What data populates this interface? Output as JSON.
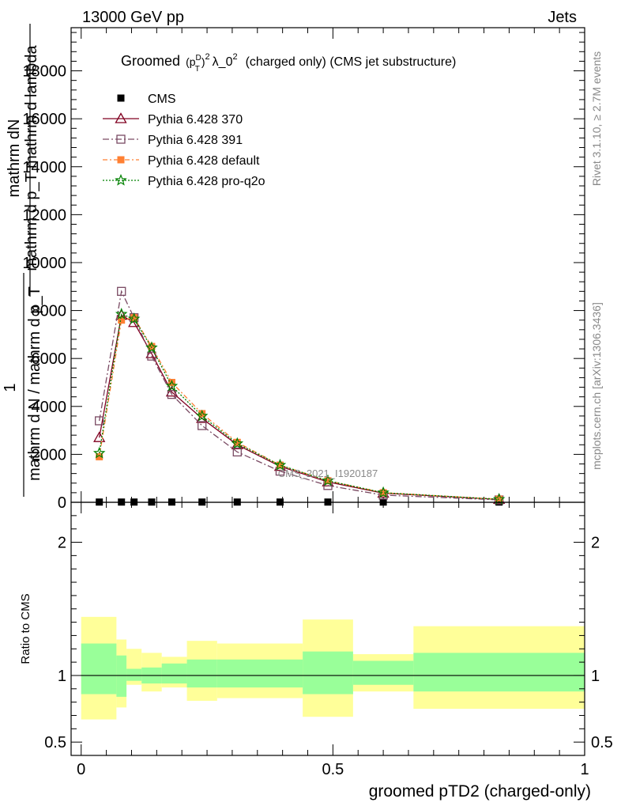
{
  "header": {
    "left": "13000 GeV pp",
    "right": "Jets"
  },
  "title": {
    "prefix": "Groomed",
    "p": "p",
    "sup_d": "D",
    "sub_t": "T",
    "sq": "2",
    "lambda": "λ_0",
    "sq2": "2",
    "suffix": "(charged only) (CMS jet substructure)"
  },
  "watermark": "CMS_2021_I1920187",
  "side_labels": {
    "rivet": "Rivet 3.1.10, ≥ 2.7M events",
    "mcplots": "mcplots.cern.ch [arXiv:1306.3436]"
  },
  "ylabel_main": {
    "numerator": "mathrm dN",
    "numerator2": "mathrm d p_T mathrm d lambda",
    "one": "1",
    "denominator": "mathrm d N / mathrm d p_T"
  },
  "ylabel_ratio": "Ratio to CMS",
  "xlabel": "groomed pTD2 (charged-only)",
  "colors": {
    "cms": "#000000",
    "p370": "#800020",
    "p391": "#7a4a63",
    "pdefault": "#ff8033",
    "pq2o": "#008000",
    "band_inner": "#99ff99",
    "band_outer": "#ffff99"
  },
  "legend": [
    {
      "key": "cms",
      "label": "CMS",
      "marker": "square-filled"
    },
    {
      "key": "p370",
      "label": "Pythia 6.428 370",
      "marker": "triangle-open"
    },
    {
      "key": "p391",
      "label": "Pythia 6.428 391",
      "marker": "square-open"
    },
    {
      "key": "pdefault",
      "label": "Pythia 6.428 default",
      "marker": "square-filled"
    },
    {
      "key": "pq2o",
      "label": "Pythia 6.428 pro-q2o",
      "marker": "star"
    }
  ],
  "chart_data": {
    "type": "line",
    "xlim": [
      -0.02,
      1.0
    ],
    "main": {
      "ylim": [
        0,
        19800
      ],
      "yticks": [
        0,
        2000,
        4000,
        6000,
        8000,
        10000,
        12000,
        14000,
        16000,
        18000
      ],
      "yticklabels": [
        "0",
        "2000",
        "4000",
        "6000",
        "8000",
        "10000",
        "12000",
        "14000",
        "16000",
        "18000"
      ]
    },
    "ratio": {
      "ylim": [
        0.4,
        2.3
      ],
      "yticks": [
        0.5,
        1,
        2
      ],
      "yticklabels": [
        "0.5",
        "1",
        "2"
      ]
    },
    "xticks": [
      0,
      0.5,
      1
    ],
    "xticklabels": [
      "0",
      "0.5",
      "1"
    ],
    "x": [
      0.036,
      0.08,
      0.105,
      0.14,
      0.18,
      0.24,
      0.31,
      0.395,
      0.49,
      0.6,
      0.83
    ],
    "series": [
      {
        "key": "cms",
        "name": "CMS",
        "values": [
          10,
          10,
          10,
          10,
          10,
          10,
          10,
          10,
          10,
          10,
          10
        ]
      },
      {
        "key": "p370",
        "name": "Pythia 6.428 370",
        "values": [
          2700,
          7800,
          7500,
          6200,
          4600,
          3500,
          2400,
          1500,
          850,
          380,
          120
        ]
      },
      {
        "key": "p391",
        "name": "Pythia 6.428 391",
        "values": [
          3400,
          8800,
          7700,
          6100,
          4500,
          3200,
          2100,
          1300,
          700,
          300,
          100
        ]
      },
      {
        "key": "pdefault",
        "name": "Pythia 6.428 default",
        "values": [
          1900,
          7600,
          7700,
          6500,
          5000,
          3700,
          2500,
          1550,
          900,
          400,
          130
        ]
      },
      {
        "key": "pq2o",
        "name": "Pythia 6.428 pro-q2o",
        "values": [
          2050,
          7850,
          7650,
          6450,
          4850,
          3600,
          2450,
          1550,
          900,
          400,
          125
        ]
      }
    ],
    "ratio_bands": [
      {
        "x0": 0.0,
        "x1": 0.07,
        "inner": [
          0.86,
          1.24
        ],
        "outer": [
          0.67,
          1.44
        ]
      },
      {
        "x0": 0.07,
        "x1": 0.09,
        "inner": [
          0.84,
          1.15
        ],
        "outer": [
          0.76,
          1.27
        ]
      },
      {
        "x0": 0.09,
        "x1": 0.12,
        "inner": [
          0.96,
          1.05
        ],
        "outer": [
          0.93,
          1.2
        ]
      },
      {
        "x0": 0.12,
        "x1": 0.16,
        "inner": [
          0.94,
          1.06
        ],
        "outer": [
          0.88,
          1.17
        ]
      },
      {
        "x0": 0.16,
        "x1": 0.21,
        "inner": [
          0.94,
          1.09
        ],
        "outer": [
          0.91,
          1.14
        ]
      },
      {
        "x0": 0.21,
        "x1": 0.27,
        "inner": [
          0.91,
          1.12
        ],
        "outer": [
          0.81,
          1.26
        ]
      },
      {
        "x0": 0.27,
        "x1": 0.44,
        "inner": [
          0.91,
          1.12
        ],
        "outer": [
          0.83,
          1.24
        ]
      },
      {
        "x0": 0.44,
        "x1": 0.54,
        "inner": [
          0.86,
          1.18
        ],
        "outer": [
          0.69,
          1.42
        ]
      },
      {
        "x0": 0.54,
        "x1": 0.66,
        "inner": [
          0.93,
          1.11
        ],
        "outer": [
          0.88,
          1.16
        ]
      },
      {
        "x0": 0.66,
        "x1": 1.0,
        "inner": [
          0.88,
          1.17
        ],
        "outer": [
          0.75,
          1.37
        ]
      }
    ]
  }
}
